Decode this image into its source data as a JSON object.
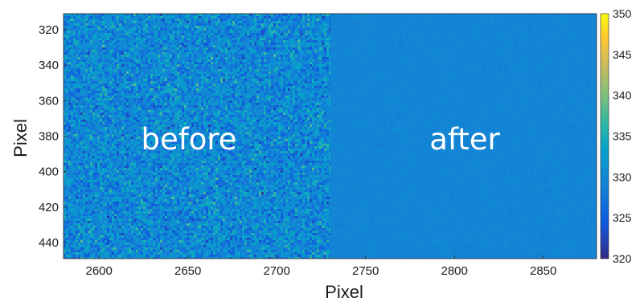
{
  "chart_data": {
    "type": "heatmap",
    "title": "",
    "xlabel": "Pixel",
    "ylabel": "Pixel",
    "xlim": [
      2580,
      2880
    ],
    "ylim": [
      311,
      449
    ],
    "y_reversed": true,
    "xticks": [
      2600,
      2650,
      2700,
      2750,
      2800,
      2850
    ],
    "yticks": [
      320,
      340,
      360,
      380,
      400,
      420,
      440
    ],
    "colorbar": {
      "colormap": "parula",
      "range": [
        320,
        350
      ],
      "ticks": [
        320,
        325,
        330,
        335,
        340,
        345,
        350
      ]
    },
    "regions": [
      {
        "label": "before",
        "x_range": [
          2580,
          2730
        ],
        "mean": 330,
        "spread": "high"
      },
      {
        "label": "after",
        "x_range": [
          2730,
          2880
        ],
        "mean": 329.5,
        "spread": "low"
      }
    ],
    "grid": false
  }
}
